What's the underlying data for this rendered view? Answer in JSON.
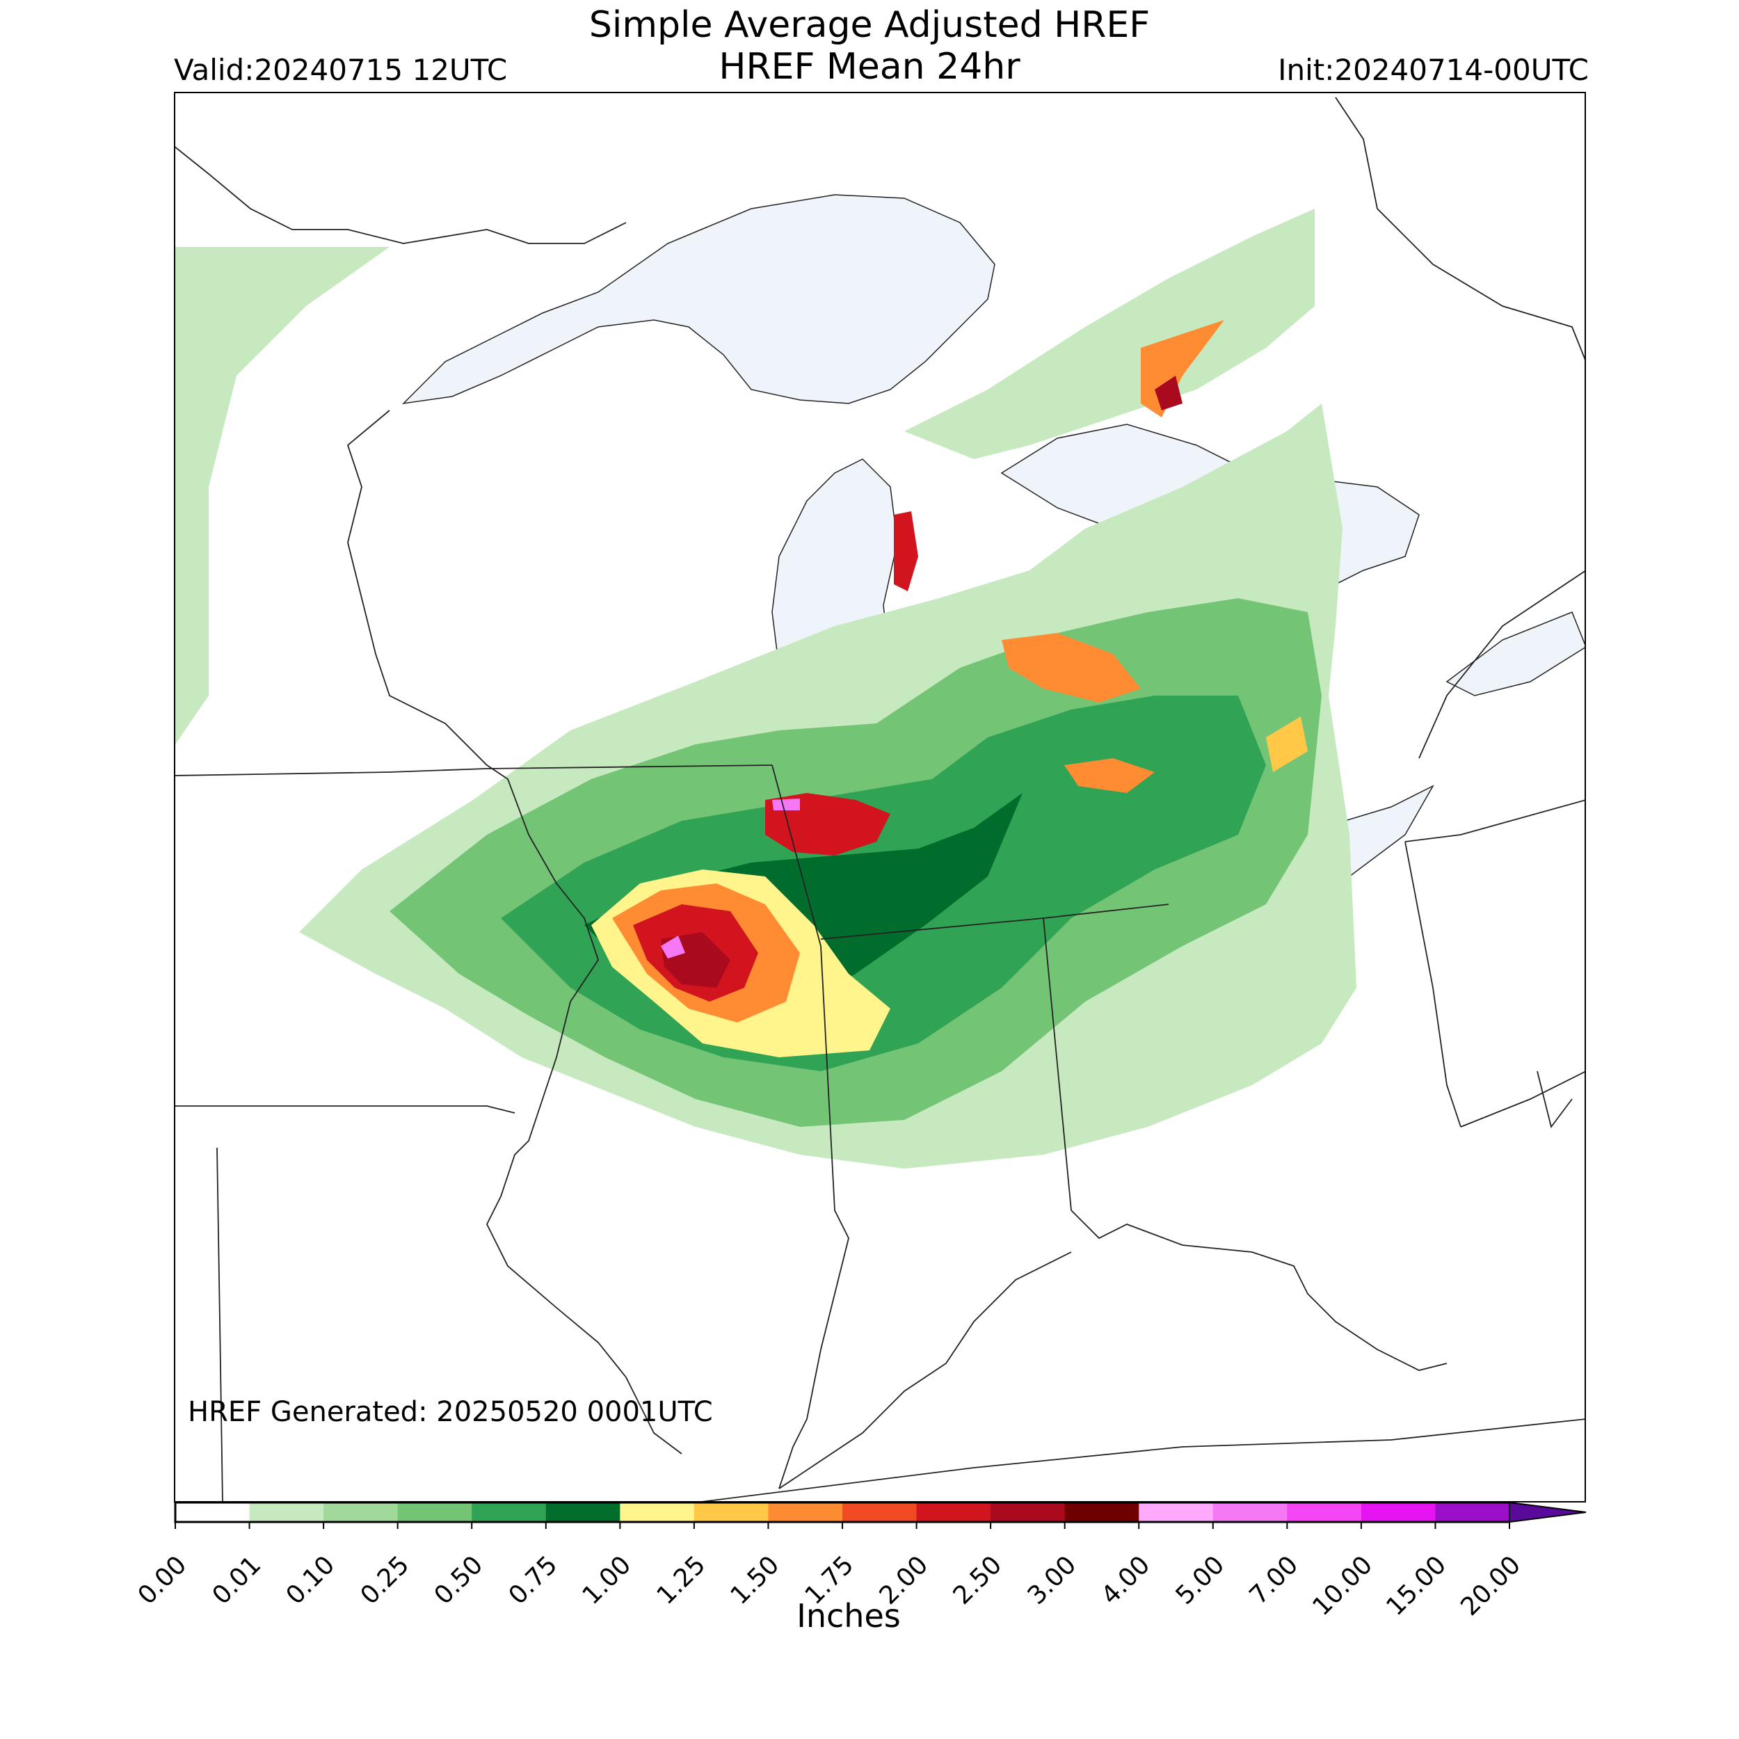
{
  "title": {
    "line1": "Simple Average Adjusted HREF",
    "line2": "HREF Mean 24hr",
    "valid": "Valid:20240715 12UTC",
    "init": "Init:20240714-00UTC"
  },
  "annotation": "HREF Generated: 20250520 0001UTC",
  "colorbar": {
    "label": "Inches",
    "ticks": [
      "0.00",
      "0.01",
      "0.10",
      "0.25",
      "0.50",
      "0.75",
      "1.00",
      "1.25",
      "1.50",
      "1.75",
      "2.00",
      "2.50",
      "3.00",
      "4.00",
      "5.00",
      "7.00",
      "10.00",
      "15.00",
      "20.00"
    ],
    "colors": [
      "#ffffff",
      "#c7e9c0",
      "#a1d99b",
      "#74c476",
      "#31a354",
      "#006d2c",
      "#fff58c",
      "#ffc846",
      "#ff8c32",
      "#f04b23",
      "#d2141e",
      "#aa0a1e",
      "#6e0000",
      "#ffaaff",
      "#f578f5",
      "#f546f5",
      "#e614f0",
      "#9b0fc8"
    ],
    "extend_color": "#5a0a9b"
  },
  "colors": {
    "water": "#eff3fa",
    "boundary": "#222222",
    "frame": "#000000"
  }
}
